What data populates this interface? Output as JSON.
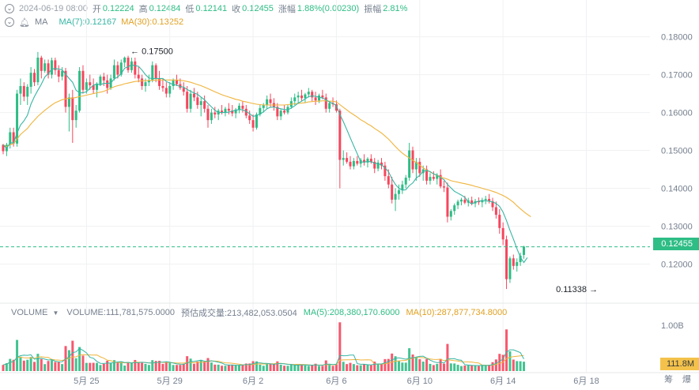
{
  "header": {
    "datetime": "2024-06-19 08:00",
    "open_label": "开",
    "open": "0.12224",
    "high_label": "高",
    "high": "0.12484",
    "low_label": "低",
    "low": "0.12141",
    "close_label": "收",
    "close": "0.12455",
    "change_label": "涨幅",
    "change": "1.88%(0.00230)",
    "amplitude_label": "振幅",
    "amplitude": "2.81%"
  },
  "ma_row": {
    "label": "MA",
    "ma7": "MA(7):0.12167",
    "ma30": "MA(30):0.13252"
  },
  "volume_row": {
    "label": "VOLUME",
    "volume": "VOLUME:111,781,575.0000",
    "estimate": "预估成交量:213,482,053.0504",
    "ma5": "MA(5):208,380,170.6000",
    "ma10": "MA(10):287,877,734.8000"
  },
  "current_price_tag": "0.12455",
  "volume_tag": "111.8M",
  "bottom_icons": [
    "筹",
    "爆"
  ],
  "colors": {
    "up": "#2ebd85",
    "down": "#f6465d",
    "ma7": "#36b5a3",
    "ma30": "#f0b43c",
    "grid": "#f0f1f3",
    "axis_text": "#76808f"
  },
  "chart_data": {
    "type": "candlestick",
    "price_axis": {
      "ticks": [
        "0.18000",
        "0.17000",
        "0.16000",
        "0.15000",
        "0.14000",
        "0.13000",
        "0.12000"
      ],
      "ylim": [
        0.1105,
        0.1818
      ]
    },
    "volume_axis": {
      "ticks": [
        "1.00B"
      ],
      "ymax": 1.0
    },
    "x_axis": {
      "ticks": [
        "5月 25",
        "5月 29",
        "6月 2",
        "6月 6",
        "6月 10",
        "6月 14",
        "6月 18"
      ],
      "tick_index": [
        24,
        48,
        72,
        96,
        120,
        144,
        168
      ]
    },
    "annotations": [
      {
        "text": "← 0.17500",
        "value": 0.175,
        "index": 36
      },
      {
        "text": "0.11338 →",
        "value": 0.11338,
        "index": 172
      }
    ],
    "current_price": 0.12455,
    "ohlc": [
      [
        0.1515,
        0.1517,
        0.149,
        0.1498
      ],
      [
        0.1498,
        0.152,
        0.1485,
        0.1515
      ],
      [
        0.1515,
        0.156,
        0.1505,
        0.1548
      ],
      [
        0.1548,
        0.156,
        0.151,
        0.1518
      ],
      [
        0.1518,
        0.166,
        0.151,
        0.165
      ],
      [
        0.165,
        0.169,
        0.162,
        0.167
      ],
      [
        0.167,
        0.168,
        0.163,
        0.1642
      ],
      [
        0.1642,
        0.1675,
        0.162,
        0.1668
      ],
      [
        0.1668,
        0.172,
        0.165,
        0.1705
      ],
      [
        0.1705,
        0.1715,
        0.167,
        0.168
      ],
      [
        0.168,
        0.176,
        0.1672,
        0.1745
      ],
      [
        0.1745,
        0.175,
        0.169,
        0.171
      ],
      [
        0.171,
        0.174,
        0.1705,
        0.173
      ],
      [
        0.173,
        0.174,
        0.169,
        0.17
      ],
      [
        0.17,
        0.1745,
        0.169,
        0.1738
      ],
      [
        0.1738,
        0.1745,
        0.17,
        0.1712
      ],
      [
        0.1712,
        0.1725,
        0.168,
        0.1695
      ],
      [
        0.1695,
        0.172,
        0.1685,
        0.171
      ],
      [
        0.171,
        0.1718,
        0.16,
        0.1615
      ],
      [
        0.1615,
        0.165,
        0.155,
        0.164
      ],
      [
        0.164,
        0.166,
        0.152,
        0.158
      ],
      [
        0.158,
        0.162,
        0.156,
        0.1605
      ],
      [
        0.1605,
        0.172,
        0.16,
        0.171
      ],
      [
        0.171,
        0.1725,
        0.165,
        0.166
      ],
      [
        0.166,
        0.169,
        0.165,
        0.168
      ],
      [
        0.168,
        0.17,
        0.166,
        0.1672
      ],
      [
        0.1672,
        0.169,
        0.165,
        0.166
      ],
      [
        0.166,
        0.168,
        0.164,
        0.1675
      ],
      [
        0.1675,
        0.17,
        0.167,
        0.1695
      ],
      [
        0.1695,
        0.1705,
        0.167,
        0.1685
      ],
      [
        0.1685,
        0.17,
        0.165,
        0.1665
      ],
      [
        0.1665,
        0.17,
        0.166,
        0.169
      ],
      [
        0.169,
        0.174,
        0.1685,
        0.1725
      ],
      [
        0.1725,
        0.1735,
        0.169,
        0.17
      ],
      [
        0.17,
        0.174,
        0.1695,
        0.1732
      ],
      [
        0.1732,
        0.1748,
        0.172,
        0.1745
      ],
      [
        0.1745,
        0.175,
        0.1705,
        0.1712
      ],
      [
        0.1712,
        0.1745,
        0.1705,
        0.1735
      ],
      [
        0.1735,
        0.1745,
        0.169,
        0.17
      ],
      [
        0.17,
        0.172,
        0.168,
        0.169
      ],
      [
        0.169,
        0.17,
        0.166,
        0.167
      ],
      [
        0.167,
        0.169,
        0.1655,
        0.168
      ],
      [
        0.168,
        0.17,
        0.167,
        0.1685
      ],
      [
        0.1685,
        0.1735,
        0.168,
        0.1725
      ],
      [
        0.1725,
        0.173,
        0.168,
        0.169
      ],
      [
        0.169,
        0.171,
        0.166,
        0.167
      ],
      [
        0.167,
        0.169,
        0.1655,
        0.1665
      ],
      [
        0.1665,
        0.168,
        0.164,
        0.165
      ],
      [
        0.165,
        0.168,
        0.164,
        0.167
      ],
      [
        0.167,
        0.169,
        0.166,
        0.1685
      ],
      [
        0.1685,
        0.17,
        0.167,
        0.1675
      ],
      [
        0.1675,
        0.169,
        0.166,
        0.1665
      ],
      [
        0.1665,
        0.168,
        0.1645,
        0.1655
      ],
      [
        0.1655,
        0.167,
        0.16,
        0.161
      ],
      [
        0.161,
        0.166,
        0.16,
        0.165
      ],
      [
        0.165,
        0.1665,
        0.163,
        0.164
      ],
      [
        0.164,
        0.1655,
        0.161,
        0.162
      ],
      [
        0.162,
        0.164,
        0.159,
        0.163
      ],
      [
        0.163,
        0.1645,
        0.16,
        0.161
      ],
      [
        0.161,
        0.162,
        0.156,
        0.158
      ],
      [
        0.158,
        0.161,
        0.157,
        0.16
      ],
      [
        0.16,
        0.1615,
        0.1585,
        0.1595
      ],
      [
        0.1595,
        0.161,
        0.158,
        0.1605
      ],
      [
        0.1605,
        0.162,
        0.1595,
        0.16
      ],
      [
        0.16,
        0.1615,
        0.159,
        0.161
      ],
      [
        0.161,
        0.1625,
        0.1595,
        0.1605
      ],
      [
        0.1605,
        0.162,
        0.159,
        0.1598
      ],
      [
        0.1598,
        0.1612,
        0.1585,
        0.1608
      ],
      [
        0.1608,
        0.1625,
        0.1598,
        0.1618
      ],
      [
        0.1618,
        0.163,
        0.16,
        0.161
      ],
      [
        0.161,
        0.162,
        0.1585,
        0.1592
      ],
      [
        0.1592,
        0.1605,
        0.157,
        0.158
      ],
      [
        0.158,
        0.1595,
        0.155,
        0.156
      ],
      [
        0.156,
        0.16,
        0.1555,
        0.1595
      ],
      [
        0.1595,
        0.162,
        0.159,
        0.1612
      ],
      [
        0.1612,
        0.1625,
        0.16,
        0.162
      ],
      [
        0.162,
        0.1645,
        0.161,
        0.1635
      ],
      [
        0.1635,
        0.165,
        0.1615,
        0.1625
      ],
      [
        0.1625,
        0.1638,
        0.1605,
        0.1615
      ],
      [
        0.1615,
        0.1625,
        0.158,
        0.159
      ],
      [
        0.159,
        0.161,
        0.158,
        0.1605
      ],
      [
        0.1605,
        0.162,
        0.1595,
        0.16
      ],
      [
        0.16,
        0.162,
        0.1595,
        0.1615
      ],
      [
        0.1615,
        0.164,
        0.161,
        0.163
      ],
      [
        0.163,
        0.165,
        0.162,
        0.164
      ],
      [
        0.164,
        0.1655,
        0.1625,
        0.1645
      ],
      [
        0.1645,
        0.166,
        0.163,
        0.1638
      ],
      [
        0.1638,
        0.1652,
        0.1625,
        0.1648
      ],
      [
        0.1648,
        0.1665,
        0.164,
        0.1655
      ],
      [
        0.1655,
        0.166,
        0.163,
        0.164
      ],
      [
        0.164,
        0.1655,
        0.162,
        0.1632
      ],
      [
        0.1632,
        0.165,
        0.1625,
        0.1645
      ],
      [
        0.1645,
        0.166,
        0.1635,
        0.164
      ],
      [
        0.164,
        0.165,
        0.16,
        0.161
      ],
      [
        0.161,
        0.163,
        0.16,
        0.1625
      ],
      [
        0.1625,
        0.164,
        0.1615,
        0.1622
      ],
      [
        0.1622,
        0.1632,
        0.16,
        0.1605
      ],
      [
        0.1605,
        0.161,
        0.14,
        0.1475
      ],
      [
        0.1475,
        0.15,
        0.146,
        0.148
      ],
      [
        0.148,
        0.1495,
        0.1465,
        0.147
      ],
      [
        0.147,
        0.1485,
        0.145,
        0.1458
      ],
      [
        0.1458,
        0.148,
        0.145,
        0.1472
      ],
      [
        0.1472,
        0.1485,
        0.146,
        0.1465
      ],
      [
        0.1465,
        0.148,
        0.1455,
        0.1475
      ],
      [
        0.1475,
        0.149,
        0.146,
        0.1468
      ],
      [
        0.1468,
        0.1482,
        0.1455,
        0.1478
      ],
      [
        0.1478,
        0.149,
        0.1465,
        0.147
      ],
      [
        0.147,
        0.148,
        0.144,
        0.1452
      ],
      [
        0.1452,
        0.1475,
        0.1445,
        0.1468
      ],
      [
        0.1468,
        0.148,
        0.145,
        0.146
      ],
      [
        0.146,
        0.147,
        0.142,
        0.1432
      ],
      [
        0.1432,
        0.145,
        0.14,
        0.141
      ],
      [
        0.141,
        0.143,
        0.136,
        0.137
      ],
      [
        0.137,
        0.14,
        0.134,
        0.1385
      ],
      [
        0.1385,
        0.141,
        0.137,
        0.1395
      ],
      [
        0.1395,
        0.142,
        0.1385,
        0.141
      ],
      [
        0.141,
        0.1435,
        0.14,
        0.1428
      ],
      [
        0.1428,
        0.152,
        0.142,
        0.15
      ],
      [
        0.15,
        0.151,
        0.144,
        0.145
      ],
      [
        0.145,
        0.148,
        0.142,
        0.147
      ],
      [
        0.147,
        0.148,
        0.143,
        0.144
      ],
      [
        0.144,
        0.146,
        0.142,
        0.145
      ],
      [
        0.145,
        0.146,
        0.141,
        0.142
      ],
      [
        0.142,
        0.144,
        0.141,
        0.143
      ],
      [
        0.143,
        0.1445,
        0.142,
        0.1425
      ],
      [
        0.1425,
        0.144,
        0.141,
        0.1435
      ],
      [
        0.1435,
        0.145,
        0.14,
        0.1405
      ],
      [
        0.1405,
        0.142,
        0.139,
        0.1402
      ],
      [
        0.1402,
        0.1415,
        0.131,
        0.1325
      ],
      [
        0.1325,
        0.1345,
        0.1315,
        0.134
      ],
      [
        0.134,
        0.136,
        0.133,
        0.1355
      ],
      [
        0.1355,
        0.137,
        0.1345,
        0.1365
      ],
      [
        0.1365,
        0.1375,
        0.1355,
        0.137
      ],
      [
        0.137,
        0.138,
        0.1358,
        0.1362
      ],
      [
        0.1362,
        0.1375,
        0.1352,
        0.1368
      ],
      [
        0.1368,
        0.1378,
        0.1355,
        0.136
      ],
      [
        0.136,
        0.1372,
        0.135,
        0.1366
      ],
      [
        0.1366,
        0.1376,
        0.1356,
        0.1363
      ],
      [
        0.1363,
        0.1375,
        0.135,
        0.1369
      ],
      [
        0.1369,
        0.138,
        0.1358,
        0.1372
      ],
      [
        0.1372,
        0.1385,
        0.136,
        0.1366
      ],
      [
        0.1366,
        0.1375,
        0.134,
        0.135
      ],
      [
        0.135,
        0.1365,
        0.132,
        0.133
      ],
      [
        0.133,
        0.1345,
        0.128,
        0.1295
      ],
      [
        0.1295,
        0.131,
        0.125,
        0.1265
      ],
      [
        0.1265,
        0.1275,
        0.1134,
        0.116
      ],
      [
        0.116,
        0.122,
        0.115,
        0.1215
      ],
      [
        0.1215,
        0.1225,
        0.1185,
        0.1195
      ],
      [
        0.1195,
        0.1215,
        0.118,
        0.1205
      ],
      [
        0.1205,
        0.123,
        0.1195,
        0.1222
      ],
      [
        0.1224,
        0.1248,
        0.1214,
        0.1246
      ]
    ],
    "ma7": [
      0.1515,
      0.1506,
      0.152,
      0.152,
      0.1546,
      0.1567,
      0.1578,
      0.1593,
      0.1622,
      0.1642,
      0.1659,
      0.1675,
      0.1694,
      0.1703,
      0.1715,
      0.1716,
      0.1715,
      0.1713,
      0.1701,
      0.169,
      0.168,
      0.1659,
      0.1652,
      0.1652,
      0.1655,
      0.1664,
      0.1672,
      0.1676,
      0.1673,
      0.1677,
      0.1677,
      0.1678,
      0.1689,
      0.1694,
      0.1703,
      0.1717,
      0.1721,
      0.1726,
      0.1724,
      0.1722,
      0.1712,
      0.17,
      0.1691,
      0.169,
      0.169,
      0.169,
      0.169,
      0.1682,
      0.1678,
      0.1674,
      0.1672,
      0.1669,
      0.1667,
      0.1661,
      0.1656,
      0.1652,
      0.1648,
      0.1641,
      0.1634,
      0.1624,
      0.1615,
      0.1606,
      0.16,
      0.16,
      0.16,
      0.1601,
      0.1604,
      0.1606,
      0.1608,
      0.1607,
      0.1603,
      0.1597,
      0.159,
      0.1592,
      0.1596,
      0.1602,
      0.161,
      0.1614,
      0.1615,
      0.1612,
      0.161,
      0.1608,
      0.1607,
      0.1612,
      0.1618,
      0.1625,
      0.163,
      0.1636,
      0.1642,
      0.1644,
      0.1643,
      0.164,
      0.1639,
      0.1633,
      0.1628,
      0.1624,
      0.1618,
      0.1595,
      0.1576,
      0.1555,
      0.1533,
      0.1512,
      0.1491,
      0.147,
      0.1469,
      0.1471,
      0.147,
      0.1466,
      0.1465,
      0.1462,
      0.1454,
      0.1444,
      0.1425,
      0.141,
      0.14,
      0.1395,
      0.1396,
      0.1407,
      0.1414,
      0.1427,
      0.1434,
      0.1445,
      0.1447,
      0.1444,
      0.1438,
      0.1435,
      0.1428,
      0.1423,
      0.141,
      0.1401,
      0.1392,
      0.1387,
      0.1382,
      0.1376,
      0.1364,
      0.1359,
      0.1363,
      0.1366,
      0.1367,
      0.1367,
      0.1366,
      0.1364,
      0.136,
      0.1352,
      0.1337,
      0.1315,
      0.1289,
      0.1266,
      0.1241,
      0.1218,
      0.1204,
      0.1217
    ],
    "ma30": [
      0.1515,
      0.151,
      0.1515,
      0.1518,
      0.153,
      0.1542,
      0.155,
      0.1558,
      0.157,
      0.158,
      0.159,
      0.1598,
      0.1606,
      0.1613,
      0.162,
      0.1626,
      0.163,
      0.1634,
      0.1636,
      0.1638,
      0.1638,
      0.164,
      0.1642,
      0.1644,
      0.1646,
      0.1648,
      0.165,
      0.1652,
      0.1654,
      0.1656,
      0.166,
      0.1664,
      0.1668,
      0.1671,
      0.1673,
      0.1676,
      0.1678,
      0.168,
      0.1682,
      0.1683,
      0.1684,
      0.1684,
      0.1685,
      0.1685,
      0.1686,
      0.1686,
      0.1686,
      0.1686,
      0.1686,
      0.1686,
      0.1686,
      0.1685,
      0.1684,
      0.1682,
      0.168,
      0.1677,
      0.1674,
      0.1671,
      0.1667,
      0.1663,
      0.1659,
      0.1655,
      0.1651,
      0.1647,
      0.1644,
      0.1641,
      0.1638,
      0.1635,
      0.1633,
      0.163,
      0.1628,
      0.1626,
      0.1624,
      0.1622,
      0.1621,
      0.162,
      0.162,
      0.162,
      0.162,
      0.162,
      0.162,
      0.162,
      0.1621,
      0.1622,
      0.1623,
      0.1624,
      0.1625,
      0.1626,
      0.1628,
      0.1629,
      0.163,
      0.163,
      0.1631,
      0.1631,
      0.163,
      0.163,
      0.1628,
      0.1621,
      0.1614,
      0.1607,
      0.16,
      0.1594,
      0.1588,
      0.1581,
      0.1576,
      0.157,
      0.1565,
      0.1558,
      0.1552,
      0.1546,
      0.1538,
      0.153,
      0.152,
      0.151,
      0.1501,
      0.1493,
      0.1486,
      0.148,
      0.1474,
      0.1468,
      0.1461,
      0.1454,
      0.1448,
      0.1443,
      0.1438,
      0.1434,
      0.143,
      0.1427,
      0.1424,
      0.142,
      0.1418,
      0.1416,
      0.1414,
      0.1412,
      0.141,
      0.1408,
      0.1405,
      0.1403,
      0.14,
      0.1397,
      0.1395,
      0.1392,
      0.1389,
      0.1385,
      0.1381,
      0.1376,
      0.137,
      0.1363,
      0.1354,
      0.1346,
      0.1338,
      0.1331,
      0.1325
    ]
  }
}
